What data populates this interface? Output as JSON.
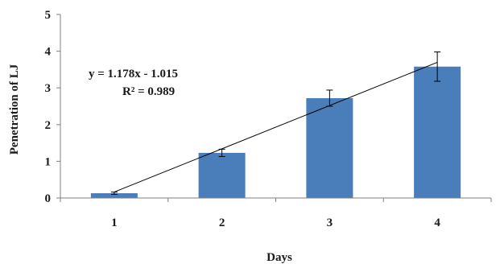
{
  "chart_data": {
    "type": "bar",
    "categories": [
      "1",
      "2",
      "3",
      "4"
    ],
    "values": [
      0.13,
      1.23,
      2.72,
      3.58
    ],
    "error": [
      0.03,
      0.1,
      0.22,
      0.4
    ],
    "ylim": [
      0,
      5
    ],
    "yticks": [
      "0",
      "1",
      "2",
      "3",
      "4",
      "5"
    ],
    "xlabel": "Days",
    "ylabel": "Penetration of LJ",
    "bar_color": "#4a7ebb",
    "trendline": {
      "slope": 1.178,
      "intercept": -1.015,
      "equation": "y = 1.178x - 1.015",
      "r2": "R² = 0.989"
    },
    "grid": false,
    "legend": "none"
  }
}
